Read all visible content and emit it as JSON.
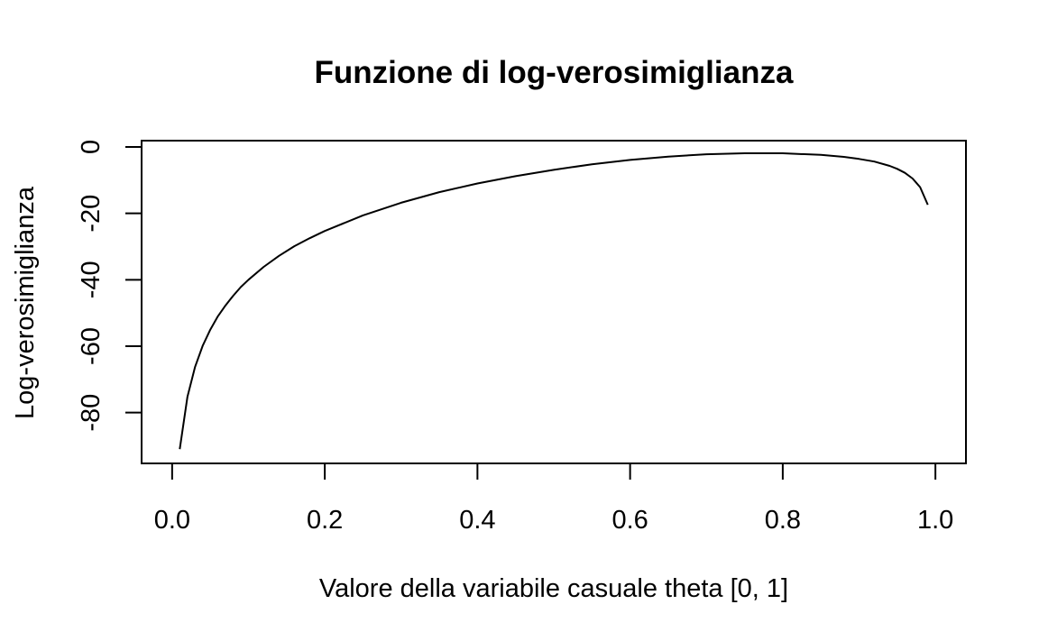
{
  "chart_data": {
    "type": "line",
    "title": "Funzione di log-verosimiglianza",
    "xlabel": "Valore della variabile casuale theta [0, 1]",
    "ylabel": "Log-verosimiglianza",
    "xlim": [
      -0.04,
      1.04
    ],
    "ylim": [
      -95.3,
      1.9
    ],
    "xticks": [
      0.0,
      0.2,
      0.4,
      0.6,
      0.8,
      1.0
    ],
    "xtick_labels": [
      "0.0",
      "0.2",
      "0.4",
      "0.6",
      "0.8",
      "1.0"
    ],
    "yticks": [
      0,
      -20,
      -40,
      -60,
      -80
    ],
    "ytick_labels": [
      "0",
      "-20",
      "-40",
      "-60",
      "-80"
    ],
    "grid": false,
    "series": [
      {
        "x": [
          0.01,
          0.02,
          0.03,
          0.04,
          0.05,
          0.06,
          0.07,
          0.08,
          0.09,
          0.1,
          0.12,
          0.14,
          0.16,
          0.18,
          0.2,
          0.25,
          0.3,
          0.35,
          0.4,
          0.45,
          0.5,
          0.55,
          0.6,
          0.65,
          0.7,
          0.75,
          0.8,
          0.85,
          0.88,
          0.9,
          0.92,
          0.94,
          0.95,
          0.96,
          0.97,
          0.98,
          0.99
        ],
        "y": [
          -91.0,
          -75.3,
          -66.3,
          -59.9,
          -55.0,
          -51.0,
          -47.7,
          -44.8,
          -42.2,
          -40.0,
          -36.1,
          -32.8,
          -29.9,
          -27.5,
          -25.3,
          -20.6,
          -16.8,
          -13.6,
          -11.0,
          -8.8,
          -6.9,
          -5.2,
          -3.9,
          -2.9,
          -2.2,
          -1.9,
          -1.9,
          -2.4,
          -3.0,
          -3.6,
          -4.4,
          -5.7,
          -6.6,
          -7.8,
          -9.5,
          -12.1,
          -17.4
        ]
      }
    ]
  }
}
